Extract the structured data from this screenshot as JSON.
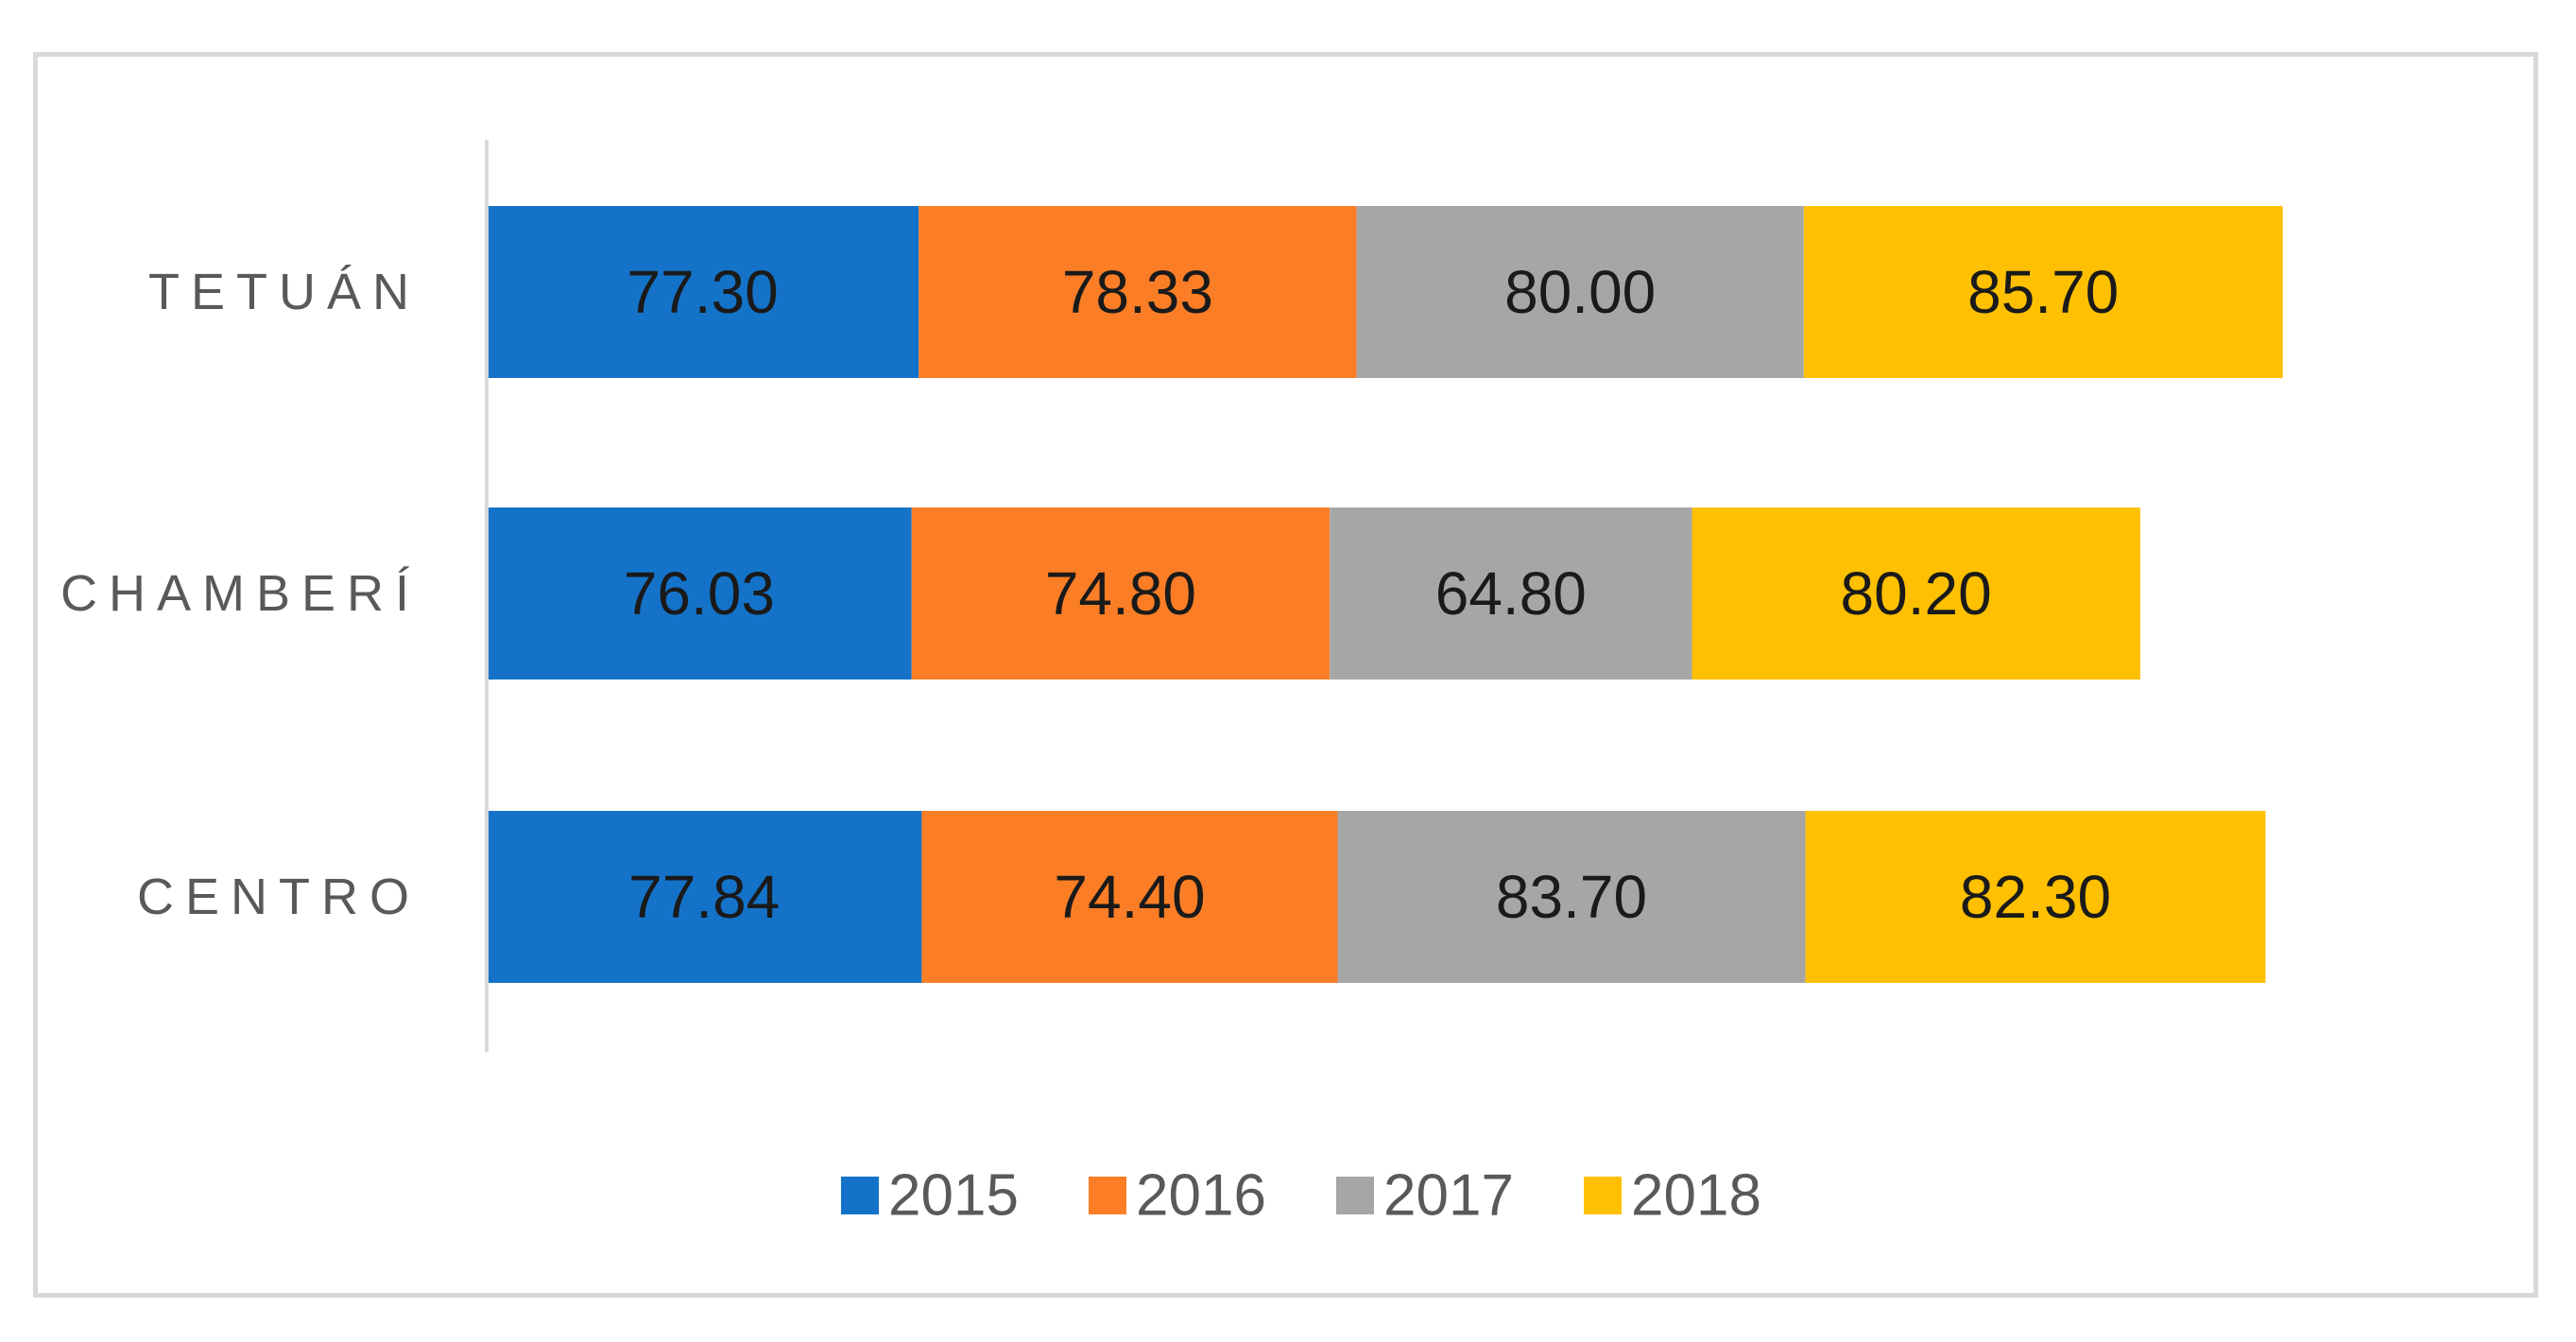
{
  "chart_data": {
    "type": "bar",
    "orientation": "horizontal",
    "stacked": true,
    "title": "",
    "xlabel": "",
    "ylabel": "",
    "categories": [
      "TETUÁN",
      "CHAMBERÍ",
      "CENTRO"
    ],
    "series": [
      {
        "name": "2015",
        "color": "#1473c9",
        "values": [
          77.3,
          76.03,
          77.84
        ]
      },
      {
        "name": "2016",
        "color": "#fb7e26",
        "values": [
          78.33,
          74.8,
          74.4
        ]
      },
      {
        "name": "2017",
        "color": "#a6a6a6",
        "values": [
          80.0,
          64.8,
          83.7
        ]
      },
      {
        "name": "2018",
        "color": "#fec000",
        "values": [
          85.7,
          80.2,
          82.3
        ]
      }
    ],
    "value_labels": [
      [
        "77.30",
        "78.33",
        "80.00",
        "85.70"
      ],
      [
        "76.03",
        "74.80",
        "64.80",
        "80.20"
      ],
      [
        "77.84",
        "74.40",
        "83.70",
        "82.30"
      ]
    ],
    "xlim": [
      0,
      350
    ],
    "grid": false,
    "legend_position": "bottom"
  }
}
